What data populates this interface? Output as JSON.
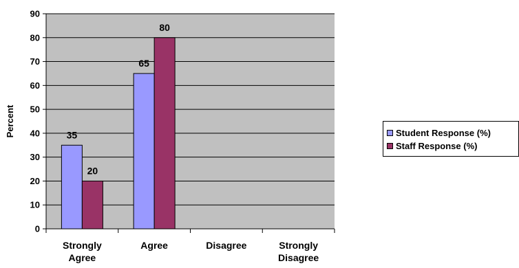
{
  "chart_data": {
    "type": "bar",
    "categories": [
      [
        "Strongly",
        "Agree"
      ],
      [
        "Agree"
      ],
      [
        "Disagree"
      ],
      [
        "Strongly",
        "Disagree"
      ]
    ],
    "series": [
      {
        "name": "Student Response (%)",
        "values": [
          35,
          65,
          null,
          null
        ],
        "color": "#9999ff"
      },
      {
        "name": "Staff Response (%)",
        "values": [
          20,
          80,
          null,
          null
        ],
        "color": "#993366"
      }
    ],
    "ylabel": "Percent",
    "ylim": [
      0,
      90
    ],
    "yticks": [
      "0",
      "10",
      "20",
      "30",
      "40",
      "50",
      "60",
      "70",
      "80",
      "90"
    ],
    "grid": true,
    "plot_background": "#c0c0c0",
    "legend_position": "right"
  }
}
